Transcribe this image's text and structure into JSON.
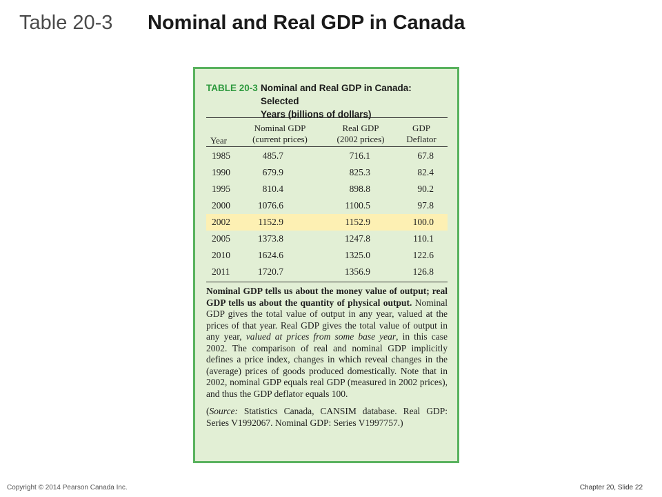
{
  "slide": {
    "title_label": "Table 20-3",
    "title_text": "Nominal and Real GDP in Canada"
  },
  "table": {
    "number": "TABLE 20-3",
    "caption_line1": "Nominal and Real GDP in Canada: Selected",
    "caption_line2": "Years (billions of dollars)",
    "headers": {
      "year": "Year",
      "nominal_1": "Nominal GDP",
      "nominal_2": "(current prices)",
      "real_1": "Real GDP",
      "real_2": "(2002 prices)",
      "deflator_1": "GDP",
      "deflator_2": "Deflator"
    },
    "rows": [
      {
        "year": "1985",
        "nominal": "485.7",
        "real": "716.1",
        "deflator": "67.8"
      },
      {
        "year": "1990",
        "nominal": "679.9",
        "real": "825.3",
        "deflator": "82.4"
      },
      {
        "year": "1995",
        "nominal": "810.4",
        "real": "898.8",
        "deflator": "90.2"
      },
      {
        "year": "2000",
        "nominal": "1076.6",
        "real": "1100.5",
        "deflator": "97.8"
      },
      {
        "year": "2002",
        "nominal": "1152.9",
        "real": "1152.9",
        "deflator": "100.0"
      },
      {
        "year": "2005",
        "nominal": "1373.8",
        "real": "1247.8",
        "deflator": "110.1"
      },
      {
        "year": "2010",
        "nominal": "1624.6",
        "real": "1325.0",
        "deflator": "122.6"
      },
      {
        "year": "2011",
        "nominal": "1720.7",
        "real": "1356.9",
        "deflator": "126.8"
      }
    ],
    "highlight_color": "#fdf0b3"
  },
  "notes": {
    "bold_lead": "Nominal GDP tells us about the money value of output; real GDP tells us about the quantity of physical output.",
    "part1": " Nominal GDP gives the total value of output in any year, valued at the prices of that year. Real GDP gives the total value of output in any year, ",
    "italic": "valued at prices from some base year",
    "part2": ", in this case 2002. The comparison of real and nominal GDP implicitly defines a price index, changes in which reveal changes in the (average) prices of goods produced domestically. Note that in 2002, nominal GDP equals real GDP (measured in 2002 prices), and thus the GDP deflator equals 100.",
    "source_open": "(",
    "source_label": "Source:",
    "source_text": " Statistics Canada, CANSIM database. Real GDP: Series V1992067. Nominal GDP: Series V1997757.)"
  },
  "footer": {
    "copyright": "Copyright © 2014 Pearson Canada Inc.",
    "chapter": "Chapter 20, Slide  22"
  },
  "colors": {
    "panel_bg": "#e2efd5",
    "panel_border": "#59b25e",
    "table_number": "#2e9a3e"
  }
}
